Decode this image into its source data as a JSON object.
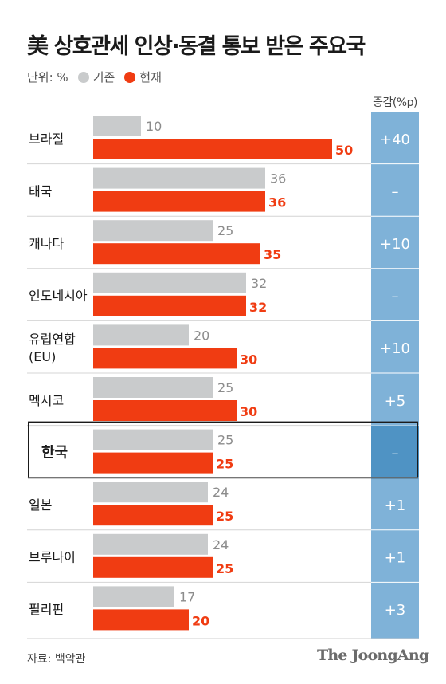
{
  "title": "美 상호관세 인상·동결 통보 받은 주요국",
  "legend": {
    "unit": "단위: %",
    "existing_label": "기존",
    "current_label": "현재"
  },
  "change_header": "증감(%p)",
  "colors": {
    "existing": "#c9cbcc",
    "current": "#f03c12",
    "change_column": "#7fb2d8",
    "highlight_change": "#4f93c4",
    "existing_text": "#8c8c8c",
    "current_text": "#f03c12"
  },
  "chart_data": {
    "type": "bar",
    "orientation": "horizontal",
    "categories": [
      "브라질",
      "태국",
      "캐나다",
      "인도네시아",
      "유럽연합\n(EU)",
      "멕시코",
      "한국",
      "일본",
      "브루나이",
      "필리핀"
    ],
    "series": [
      {
        "name": "기존",
        "values": [
          10,
          36,
          25,
          32,
          20,
          25,
          25,
          24,
          24,
          17
        ]
      },
      {
        "name": "현재",
        "values": [
          50,
          36,
          35,
          32,
          30,
          30,
          25,
          25,
          25,
          20
        ]
      }
    ],
    "changes": [
      "+40",
      "–",
      "+10",
      "–",
      "+10",
      "+5",
      "–",
      "+1",
      "+1",
      "+3"
    ],
    "highlight": "한국",
    "xlim": [
      0,
      50
    ]
  },
  "source": "자료: 백악관",
  "logo": "The JoongAng"
}
